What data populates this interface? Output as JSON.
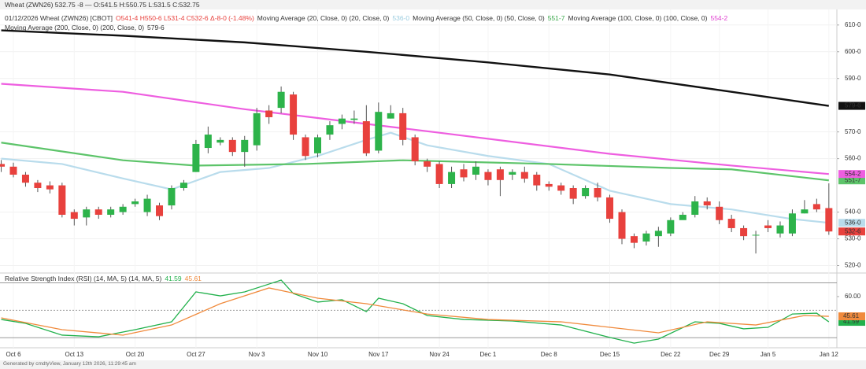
{
  "header": {
    "top": "Wheat (ZWN26) 532.75 -8 — O:541.5 H:550.75 L:531.5 C:532.75",
    "symbol": "01/12/2026 Wheat (ZWN26) [CBOT]",
    "ohlc": "O541-4 H550-6 L531-4 C532-6 Δ-8-0 (-1.48%)",
    "footer": "Generated by cmdtyView, January 12th 2026, 11:29:45 am"
  },
  "chart_data": [
    {
      "type": "candlestick",
      "categories": [
        null,
        "Oct 6",
        null,
        null,
        null,
        null,
        "Oct 13",
        null,
        null,
        null,
        null,
        "Oct 20",
        null,
        null,
        null,
        null,
        "Oct 27",
        null,
        null,
        null,
        null,
        "Nov 3",
        null,
        null,
        null,
        null,
        "Nov 10",
        null,
        null,
        null,
        null,
        "Nov 17",
        null,
        null,
        null,
        null,
        "Nov 24",
        null,
        null,
        null,
        "Dec 1",
        null,
        null,
        null,
        null,
        "Dec 8",
        null,
        null,
        null,
        null,
        "Dec 15",
        null,
        null,
        null,
        null,
        "Dec 22",
        null,
        null,
        null,
        "Dec 29",
        null,
        null,
        null,
        "Jan 5",
        null,
        null,
        null,
        null,
        "Jan 12"
      ],
      "open": [
        558,
        557,
        554,
        551,
        550,
        550,
        540,
        538,
        541,
        539,
        540,
        543,
        540,
        542.5,
        542.5,
        549,
        555,
        564,
        566,
        567,
        562.5,
        565,
        578,
        579,
        584,
        568,
        562,
        569,
        573,
        574.5,
        574,
        563,
        575,
        577,
        568,
        559,
        558,
        550.5,
        556,
        554,
        555,
        556,
        554,
        555,
        554,
        550.5,
        550,
        549,
        546,
        549,
        545.5,
        540,
        531,
        529,
        531,
        532,
        537,
        539,
        544,
        542,
        537.5,
        534,
        531.5,
        535,
        532,
        532,
        539.5,
        543,
        541.5
      ],
      "high": [
        559.5,
        558.5,
        555,
        552,
        551.5,
        551,
        541,
        542,
        542,
        542,
        543,
        545,
        546.5,
        543.5,
        550,
        552,
        567,
        572,
        568,
        568,
        568.5,
        579,
        580,
        587,
        585,
        569,
        569,
        574,
        576.5,
        578,
        580,
        581,
        580,
        579,
        569,
        560,
        559,
        557,
        558,
        559,
        556,
        557,
        556,
        557,
        555,
        551.5,
        551,
        550,
        550,
        551,
        546.5,
        541,
        532,
        533,
        534.5,
        538,
        540,
        546,
        545.5,
        544,
        539,
        535,
        533,
        537,
        536.5,
        541,
        544.5,
        545,
        550.75
      ],
      "low": [
        555,
        553,
        549.5,
        547.5,
        547,
        538,
        535,
        535,
        537.5,
        538,
        539,
        542,
        538.5,
        537,
        541,
        548,
        555,
        562,
        565,
        561,
        557,
        563,
        573,
        577,
        567,
        559.5,
        560.5,
        567,
        571,
        573,
        561,
        562,
        575,
        565,
        557.5,
        555,
        549,
        549,
        551.5,
        552,
        550,
        546,
        552,
        551,
        548,
        548,
        546.5,
        543,
        545,
        544,
        536,
        528,
        526.5,
        527.5,
        527,
        531,
        537.5,
        538,
        541,
        535.5,
        532.5,
        529.5,
        524.5,
        532.5,
        530.5,
        531,
        539.5,
        540,
        531.5
      ],
      "close": [
        557,
        554,
        551,
        549,
        548.5,
        539,
        537.5,
        541,
        539,
        541,
        542,
        544,
        545,
        538.5,
        549,
        551,
        565.5,
        569,
        567,
        562.5,
        567,
        577,
        575.5,
        585,
        569,
        561,
        568,
        572.5,
        575,
        575,
        562,
        577.5,
        577,
        567,
        559,
        557,
        550.5,
        555,
        553,
        557,
        552,
        552,
        555,
        552.5,
        550,
        549.5,
        548,
        545,
        549,
        545.5,
        537.5,
        530,
        528.5,
        532,
        533,
        537,
        539,
        544,
        542.5,
        537,
        534,
        531,
        531.5,
        534,
        535,
        539.5,
        541,
        541,
        532.75
      ],
      "close_labels": [
        null,
        null,
        null,
        null,
        null,
        null,
        null,
        null,
        null,
        null,
        null,
        null,
        null,
        null,
        null,
        null,
        null,
        null,
        null,
        null,
        null,
        null,
        null,
        null,
        null,
        null,
        null,
        null,
        null,
        null,
        null,
        null,
        null,
        null,
        null,
        null,
        null,
        null,
        null,
        null,
        null,
        null,
        null,
        null,
        null,
        null,
        null,
        null,
        null,
        null,
        null,
        null,
        null,
        null,
        null,
        null,
        null,
        null,
        null,
        null,
        null,
        null,
        null,
        null,
        null,
        null,
        null,
        null,
        "532-6"
      ],
      "up_color": "#2db34a",
      "down_color": "#e8413d",
      "series": [
        {
          "name": "Moving Average (20, Close, 0) (20, Close, 0)",
          "color": "#b9dcec",
          "x": [
            0,
            5,
            10,
            14,
            18,
            22,
            26,
            30,
            32,
            35,
            40,
            45,
            50,
            55,
            60,
            65,
            68
          ],
          "values": [
            560,
            558,
            552.6,
            548.5,
            555,
            556.5,
            561,
            567,
            569.7,
            565,
            561,
            558,
            548,
            543,
            541,
            537.4,
            536
          ],
          "value_labels": [
            null,
            null,
            null,
            null,
            null,
            null,
            null,
            null,
            null,
            null,
            null,
            null,
            null,
            null,
            null,
            null,
            "536-0"
          ]
        },
        {
          "name": "Moving Average (50, Close, 0) (50, Close, 0)",
          "color": "#5dc46a",
          "x": [
            0,
            10,
            16,
            25,
            33,
            45,
            55,
            60,
            68
          ],
          "values": [
            566,
            559.4,
            557.4,
            558,
            559.4,
            558,
            556.5,
            556,
            551.875
          ],
          "value_labels": [
            null,
            null,
            null,
            null,
            null,
            null,
            null,
            null,
            "551-7"
          ]
        },
        {
          "name": "Moving Average (100, Close, 0) (100, Close, 0)",
          "color": "#ee5ee0",
          "x": [
            0,
            10,
            20,
            30,
            36,
            50,
            60,
            68
          ],
          "values": [
            588,
            585,
            578.5,
            573,
            569.7,
            561.8,
            557.4,
            554.25
          ],
          "value_labels": [
            null,
            null,
            null,
            null,
            null,
            null,
            null,
            "554-2"
          ]
        },
        {
          "name": "Moving Average (200, Close, 0) (200, Close, 0)",
          "color": "#111111",
          "x": [
            0,
            10,
            20,
            30,
            40,
            50,
            60,
            68
          ],
          "values": [
            608,
            606,
            603.5,
            600,
            596,
            591.5,
            585,
            579.75
          ],
          "value_labels": [
            null,
            null,
            null,
            null,
            null,
            null,
            null,
            "579-6"
          ]
        }
      ],
      "ylim": [
        517.5,
        612
      ],
      "yticks": [
        {
          "value": 610,
          "label": "610-0"
        },
        {
          "value": 600,
          "label": "600-0"
        },
        {
          "value": 590,
          "label": "590-0"
        },
        {
          "value": 570,
          "label": "570-0"
        },
        {
          "value": 560,
          "label": "560-0"
        },
        {
          "value": 540,
          "label": "540-0"
        },
        {
          "value": 530,
          "label": "530-0"
        },
        {
          "value": 520,
          "label": "520-0"
        }
      ],
      "grid": true
    },
    {
      "type": "line",
      "title": "Relative Strength Index (RSI) (14, MA, 5) (14, MA, 5)",
      "series": [
        {
          "color": "#22b14c",
          "x": [
            0,
            2,
            5,
            8,
            11,
            14,
            16,
            18,
            20,
            22,
            23,
            24,
            26,
            28,
            30,
            31,
            33,
            35,
            38,
            42,
            46,
            50,
            52,
            54,
            57,
            59,
            61,
            63,
            65,
            67,
            68
          ],
          "values": [
            43.3,
            40.5,
            31.9,
            30.7,
            35.9,
            41.6,
            63.4,
            60.5,
            63.4,
            69.1,
            72,
            62.2,
            56,
            57.7,
            49,
            58.8,
            54.8,
            46.2,
            43.3,
            42.2,
            39.3,
            30.2,
            26.1,
            29,
            41.6,
            40.5,
            36.5,
            37.6,
            47.3,
            47.9,
            41.59
          ]
        },
        {
          "color": "#f08a3c",
          "x": [
            0,
            5,
            10,
            14,
            18,
            22,
            26,
            30,
            35,
            40,
            46,
            50,
            54,
            58,
            62,
            66,
            68
          ],
          "values": [
            44.5,
            35.9,
            31.9,
            39.3,
            54.8,
            66.3,
            58.8,
            54.8,
            47.3,
            43.3,
            41.6,
            37.6,
            33.6,
            41.6,
            39.3,
            46.2,
            45.61
          ]
        }
      ],
      "ylim": [
        25,
        72
      ],
      "yticks": [
        {
          "value": 60,
          "label": "60.00"
        }
      ],
      "bands": [
        70,
        50,
        30
      ]
    }
  ]
}
